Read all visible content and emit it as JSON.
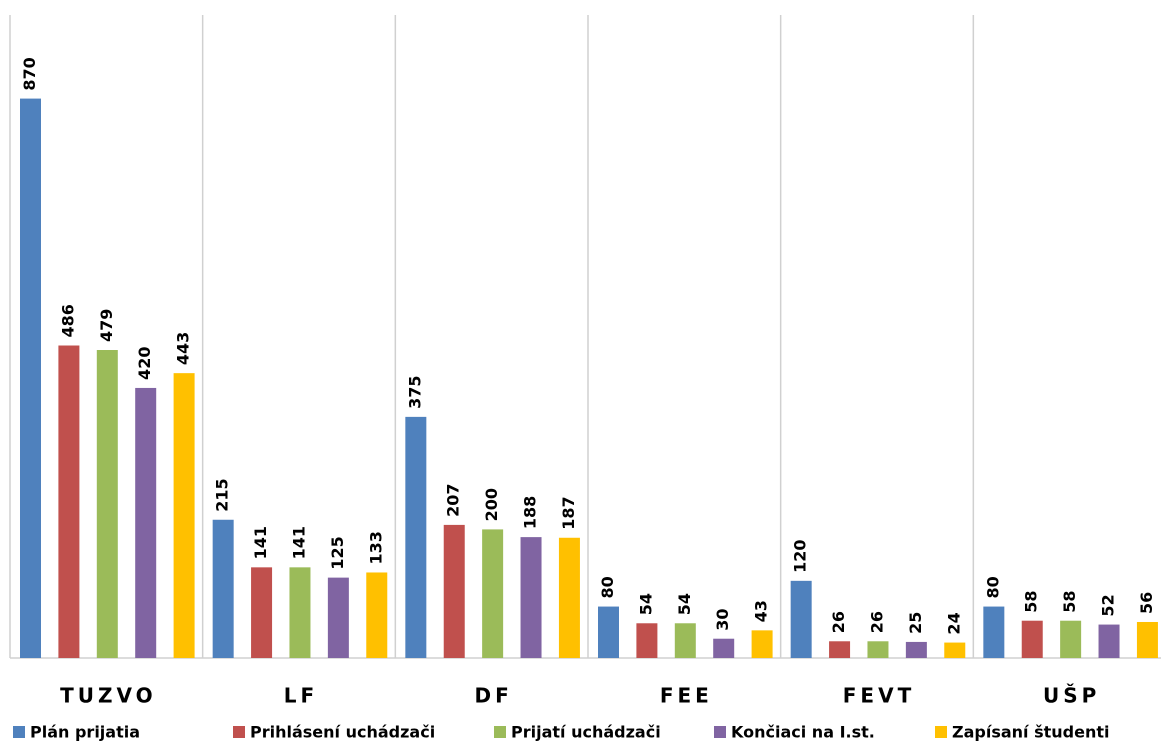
{
  "chart_data": {
    "type": "bar",
    "categories": [
      "TUZVO",
      "LF",
      "DF",
      "FEE",
      "FEVT",
      "UŠP"
    ],
    "series": [
      {
        "name": "Plán prijatia",
        "color": "#4f81bd",
        "values": [
          870,
          215,
          375,
          80,
          120,
          80
        ]
      },
      {
        "name": "Prihlásení uchádzači",
        "color": "#c0504d",
        "values": [
          486,
          141,
          207,
          54,
          26,
          58
        ]
      },
      {
        "name": "Prijatí uchádzači",
        "color": "#9bbb59",
        "values": [
          479,
          141,
          200,
          54,
          26,
          58
        ]
      },
      {
        "name": "Končiaci na I.st.",
        "color": "#8064a2",
        "values": [
          420,
          125,
          188,
          30,
          25,
          52
        ]
      },
      {
        "name": "Zapísaní študenti",
        "color": "#ffc000",
        "values": [
          443,
          133,
          187,
          43,
          24,
          56
        ]
      }
    ],
    "ylim": [
      0,
      1000
    ]
  }
}
